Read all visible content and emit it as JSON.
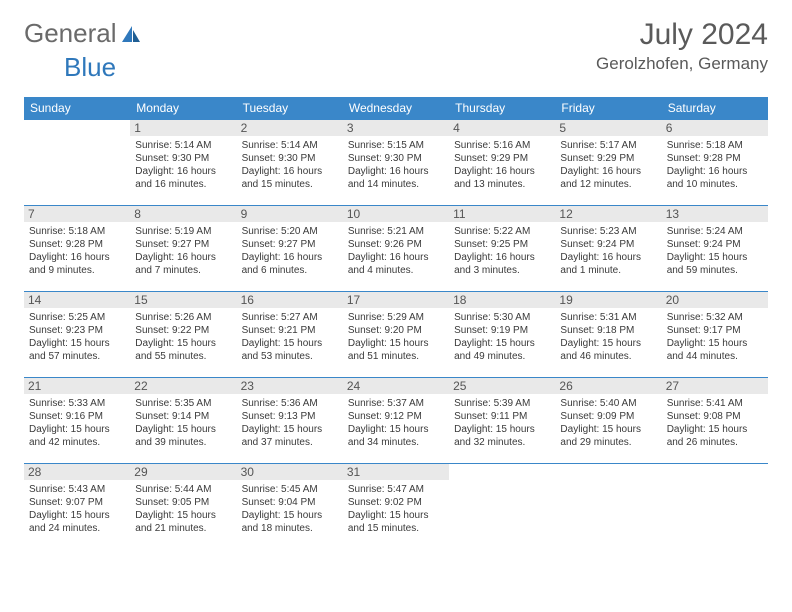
{
  "logo": {
    "word1": "General",
    "word2": "Blue"
  },
  "title": "July 2024",
  "location": "Gerolzhofen, Germany",
  "colors": {
    "header_bg": "#3a87c9",
    "header_text": "#ffffff",
    "row_border": "#3a87c9",
    "daynum_bg": "#e9e9e9",
    "body_text": "#3a3a3a",
    "logo_gray": "#6a6a6a",
    "logo_blue": "#2f78bb",
    "page_bg": "#ffffff"
  },
  "typography": {
    "title_fontsize": 30,
    "location_fontsize": 17,
    "dayhead_fontsize": 12,
    "cell_fontsize": 10
  },
  "day_headers": [
    "Sunday",
    "Monday",
    "Tuesday",
    "Wednesday",
    "Thursday",
    "Friday",
    "Saturday"
  ],
  "weeks": [
    [
      null,
      {
        "n": "1",
        "sr": "Sunrise: 5:14 AM",
        "ss": "Sunset: 9:30 PM",
        "d1": "Daylight: 16 hours",
        "d2": "and 16 minutes."
      },
      {
        "n": "2",
        "sr": "Sunrise: 5:14 AM",
        "ss": "Sunset: 9:30 PM",
        "d1": "Daylight: 16 hours",
        "d2": "and 15 minutes."
      },
      {
        "n": "3",
        "sr": "Sunrise: 5:15 AM",
        "ss": "Sunset: 9:30 PM",
        "d1": "Daylight: 16 hours",
        "d2": "and 14 minutes."
      },
      {
        "n": "4",
        "sr": "Sunrise: 5:16 AM",
        "ss": "Sunset: 9:29 PM",
        "d1": "Daylight: 16 hours",
        "d2": "and 13 minutes."
      },
      {
        "n": "5",
        "sr": "Sunrise: 5:17 AM",
        "ss": "Sunset: 9:29 PM",
        "d1": "Daylight: 16 hours",
        "d2": "and 12 minutes."
      },
      {
        "n": "6",
        "sr": "Sunrise: 5:18 AM",
        "ss": "Sunset: 9:28 PM",
        "d1": "Daylight: 16 hours",
        "d2": "and 10 minutes."
      }
    ],
    [
      {
        "n": "7",
        "sr": "Sunrise: 5:18 AM",
        "ss": "Sunset: 9:28 PM",
        "d1": "Daylight: 16 hours",
        "d2": "and 9 minutes."
      },
      {
        "n": "8",
        "sr": "Sunrise: 5:19 AM",
        "ss": "Sunset: 9:27 PM",
        "d1": "Daylight: 16 hours",
        "d2": "and 7 minutes."
      },
      {
        "n": "9",
        "sr": "Sunrise: 5:20 AM",
        "ss": "Sunset: 9:27 PM",
        "d1": "Daylight: 16 hours",
        "d2": "and 6 minutes."
      },
      {
        "n": "10",
        "sr": "Sunrise: 5:21 AM",
        "ss": "Sunset: 9:26 PM",
        "d1": "Daylight: 16 hours",
        "d2": "and 4 minutes."
      },
      {
        "n": "11",
        "sr": "Sunrise: 5:22 AM",
        "ss": "Sunset: 9:25 PM",
        "d1": "Daylight: 16 hours",
        "d2": "and 3 minutes."
      },
      {
        "n": "12",
        "sr": "Sunrise: 5:23 AM",
        "ss": "Sunset: 9:24 PM",
        "d1": "Daylight: 16 hours",
        "d2": "and 1 minute."
      },
      {
        "n": "13",
        "sr": "Sunrise: 5:24 AM",
        "ss": "Sunset: 9:24 PM",
        "d1": "Daylight: 15 hours",
        "d2": "and 59 minutes."
      }
    ],
    [
      {
        "n": "14",
        "sr": "Sunrise: 5:25 AM",
        "ss": "Sunset: 9:23 PM",
        "d1": "Daylight: 15 hours",
        "d2": "and 57 minutes."
      },
      {
        "n": "15",
        "sr": "Sunrise: 5:26 AM",
        "ss": "Sunset: 9:22 PM",
        "d1": "Daylight: 15 hours",
        "d2": "and 55 minutes."
      },
      {
        "n": "16",
        "sr": "Sunrise: 5:27 AM",
        "ss": "Sunset: 9:21 PM",
        "d1": "Daylight: 15 hours",
        "d2": "and 53 minutes."
      },
      {
        "n": "17",
        "sr": "Sunrise: 5:29 AM",
        "ss": "Sunset: 9:20 PM",
        "d1": "Daylight: 15 hours",
        "d2": "and 51 minutes."
      },
      {
        "n": "18",
        "sr": "Sunrise: 5:30 AM",
        "ss": "Sunset: 9:19 PM",
        "d1": "Daylight: 15 hours",
        "d2": "and 49 minutes."
      },
      {
        "n": "19",
        "sr": "Sunrise: 5:31 AM",
        "ss": "Sunset: 9:18 PM",
        "d1": "Daylight: 15 hours",
        "d2": "and 46 minutes."
      },
      {
        "n": "20",
        "sr": "Sunrise: 5:32 AM",
        "ss": "Sunset: 9:17 PM",
        "d1": "Daylight: 15 hours",
        "d2": "and 44 minutes."
      }
    ],
    [
      {
        "n": "21",
        "sr": "Sunrise: 5:33 AM",
        "ss": "Sunset: 9:16 PM",
        "d1": "Daylight: 15 hours",
        "d2": "and 42 minutes."
      },
      {
        "n": "22",
        "sr": "Sunrise: 5:35 AM",
        "ss": "Sunset: 9:14 PM",
        "d1": "Daylight: 15 hours",
        "d2": "and 39 minutes."
      },
      {
        "n": "23",
        "sr": "Sunrise: 5:36 AM",
        "ss": "Sunset: 9:13 PM",
        "d1": "Daylight: 15 hours",
        "d2": "and 37 minutes."
      },
      {
        "n": "24",
        "sr": "Sunrise: 5:37 AM",
        "ss": "Sunset: 9:12 PM",
        "d1": "Daylight: 15 hours",
        "d2": "and 34 minutes."
      },
      {
        "n": "25",
        "sr": "Sunrise: 5:39 AM",
        "ss": "Sunset: 9:11 PM",
        "d1": "Daylight: 15 hours",
        "d2": "and 32 minutes."
      },
      {
        "n": "26",
        "sr": "Sunrise: 5:40 AM",
        "ss": "Sunset: 9:09 PM",
        "d1": "Daylight: 15 hours",
        "d2": "and 29 minutes."
      },
      {
        "n": "27",
        "sr": "Sunrise: 5:41 AM",
        "ss": "Sunset: 9:08 PM",
        "d1": "Daylight: 15 hours",
        "d2": "and 26 minutes."
      }
    ],
    [
      {
        "n": "28",
        "sr": "Sunrise: 5:43 AM",
        "ss": "Sunset: 9:07 PM",
        "d1": "Daylight: 15 hours",
        "d2": "and 24 minutes."
      },
      {
        "n": "29",
        "sr": "Sunrise: 5:44 AM",
        "ss": "Sunset: 9:05 PM",
        "d1": "Daylight: 15 hours",
        "d2": "and 21 minutes."
      },
      {
        "n": "30",
        "sr": "Sunrise: 5:45 AM",
        "ss": "Sunset: 9:04 PM",
        "d1": "Daylight: 15 hours",
        "d2": "and 18 minutes."
      },
      {
        "n": "31",
        "sr": "Sunrise: 5:47 AM",
        "ss": "Sunset: 9:02 PM",
        "d1": "Daylight: 15 hours",
        "d2": "and 15 minutes."
      },
      null,
      null,
      null
    ]
  ]
}
